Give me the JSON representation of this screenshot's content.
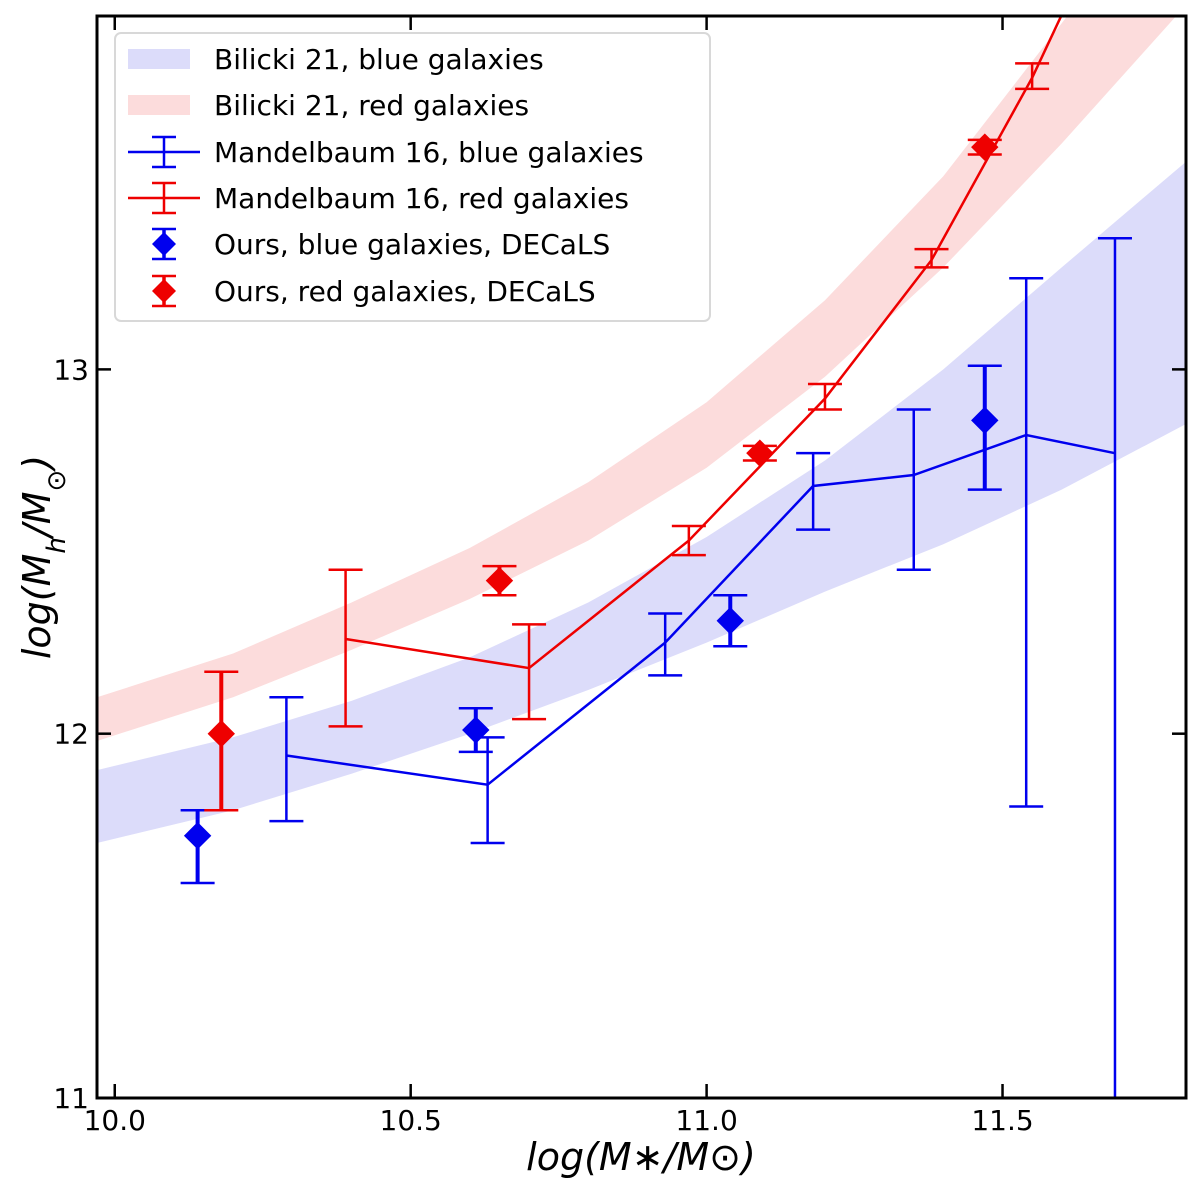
{
  "chart_data": {
    "type": "line",
    "xlabel": "log(M∗/M⊙)",
    "ylabel_parts": [
      "log(M",
      "h",
      "/M",
      "⊙",
      ")"
    ],
    "xlim": [
      9.97,
      11.81
    ],
    "ylim": [
      11.0,
      13.97
    ],
    "xticks": [
      10.0,
      10.5,
      11.0,
      11.5
    ],
    "xtick_labels": [
      "10.0",
      "10.5",
      "11.0",
      "11.5"
    ],
    "yticks": [
      11.0,
      12.0,
      13.0
    ],
    "ytick_labels": [
      "11",
      "12",
      "13"
    ],
    "grid": false,
    "legend_position": "top-left",
    "colors": {
      "blue": "#0000ee",
      "red": "#ee0000",
      "band_blue": "#dcdcfa",
      "band_red": "#fcdcdc"
    },
    "bands": [
      {
        "name": "Bilicki 21, blue galaxies",
        "color": "#dcdcfa",
        "x": [
          9.97,
          10.2,
          10.4,
          10.6,
          10.8,
          11.0,
          11.2,
          11.4,
          11.6,
          11.81
        ],
        "lower": [
          11.7,
          11.79,
          11.89,
          12.0,
          12.12,
          12.25,
          12.39,
          12.52,
          12.67,
          12.85
        ],
        "upper": [
          11.9,
          11.99,
          12.09,
          12.21,
          12.36,
          12.54,
          12.75,
          13.0,
          13.28,
          13.57
        ]
      },
      {
        "name": "Bilicki 21, red galaxies",
        "color": "#fcdcdc",
        "x": [
          9.97,
          10.2,
          10.4,
          10.6,
          10.8,
          11.0,
          11.2,
          11.4,
          11.6,
          11.81
        ],
        "lower": [
          11.98,
          12.1,
          12.23,
          12.37,
          12.53,
          12.73,
          12.98,
          13.28,
          13.62,
          14.0
        ],
        "upper": [
          12.1,
          12.22,
          12.36,
          12.51,
          12.69,
          12.91,
          13.19,
          13.53,
          13.95,
          14.4
        ]
      }
    ],
    "series": [
      {
        "name": "Mandelbaum 16, blue galaxies",
        "color": "#0000ee",
        "style": "errorbar-line",
        "x": [
          10.29,
          10.63,
          10.93,
          11.18,
          11.35,
          11.54,
          11.69
        ],
        "y": [
          11.94,
          11.86,
          12.25,
          12.68,
          12.71,
          12.82,
          12.77
        ],
        "yerr_low": [
          11.76,
          11.7,
          12.16,
          12.56,
          12.45,
          11.8,
          11.0
        ],
        "yerr_high": [
          12.1,
          11.99,
          12.33,
          12.77,
          12.89,
          13.25,
          13.36
        ]
      },
      {
        "name": "Mandelbaum 16, red galaxies",
        "color": "#ee0000",
        "style": "errorbar-line",
        "x": [
          10.39,
          10.7,
          10.97,
          11.2,
          11.38,
          11.55,
          11.81
        ],
        "y": [
          12.26,
          12.18,
          12.53,
          12.92,
          13.3,
          13.8,
          14.7
        ],
        "yerr_low": [
          12.02,
          12.04,
          12.49,
          12.89,
          13.28,
          13.77
        ],
        "yerr_high": [
          12.45,
          12.3,
          12.57,
          12.96,
          13.33,
          13.84
        ]
      },
      {
        "name": "Ours, blue galaxies, DECaLS",
        "color": "#0000ee",
        "style": "diamond",
        "x": [
          10.14,
          10.61,
          11.04,
          11.47
        ],
        "y": [
          11.72,
          12.01,
          12.31,
          12.86
        ],
        "yerr_low": [
          11.59,
          11.95,
          12.24,
          12.67
        ],
        "yerr_high": [
          11.79,
          12.07,
          12.38,
          13.01
        ]
      },
      {
        "name": "Ours, red galaxies, DECaLS",
        "color": "#ee0000",
        "style": "diamond",
        "x": [
          10.18,
          10.65,
          11.09,
          11.47
        ],
        "y": [
          12.0,
          12.42,
          12.77,
          13.61
        ],
        "yerr_low": [
          11.79,
          12.38,
          12.75,
          13.59
        ],
        "yerr_high": [
          12.17,
          12.46,
          12.79,
          13.63
        ]
      }
    ]
  }
}
